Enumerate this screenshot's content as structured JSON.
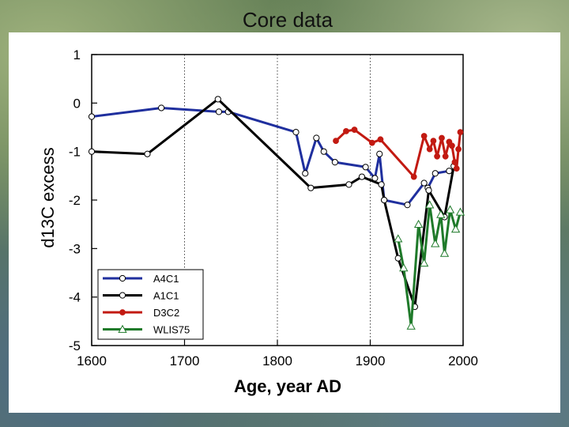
{
  "slide": {
    "title": "Core data"
  },
  "chart_data": {
    "type": "line",
    "title": "",
    "xlabel": "Age, year AD",
    "ylabel": "d13C excess",
    "xlim": [
      1600,
      2000
    ],
    "ylim": [
      -5,
      1
    ],
    "xticks": [
      1600,
      1700,
      1800,
      1900,
      2000
    ],
    "yticks": [
      1,
      0,
      -1,
      -2,
      -3,
      -4,
      -5
    ],
    "grid": "vertical dotted at x ticks",
    "legend_position": "bottom-left",
    "series": [
      {
        "name": "A4C1",
        "color": "#1f2f9e",
        "marker": "circle-open",
        "x": [
          1600,
          1675,
          1737,
          1747,
          1820,
          1830,
          1842,
          1850,
          1862,
          1895,
          1905,
          1910,
          1915,
          1940,
          1958,
          1962,
          1970,
          1985
        ],
        "y": [
          -0.28,
          -0.1,
          -0.18,
          -0.18,
          -0.6,
          -1.45,
          -0.72,
          -1.0,
          -1.22,
          -1.32,
          -1.55,
          -1.05,
          -2.0,
          -2.1,
          -1.65,
          -1.75,
          -1.45,
          -1.4
        ]
      },
      {
        "name": "A1C1",
        "color": "#000000",
        "marker": "circle-open",
        "x": [
          1600,
          1660,
          1736,
          1836,
          1877,
          1891,
          1912,
          1915,
          1930,
          1948,
          1963,
          1980,
          1990
        ],
        "y": [
          -1.0,
          -1.05,
          0.08,
          -1.75,
          -1.68,
          -1.52,
          -1.68,
          -2.0,
          -3.2,
          -4.2,
          -1.8,
          -2.35,
          -1.3
        ]
      },
      {
        "name": "D3C2",
        "color": "#c21a12",
        "marker": "circle-filled",
        "x": [
          1863,
          1874,
          1883,
          1902,
          1911,
          1947,
          1958,
          1964,
          1968,
          1972,
          1977,
          1981,
          1985,
          1988,
          1991,
          1993,
          1995,
          1997
        ],
        "y": [
          -0.78,
          -0.58,
          -0.55,
          -0.82,
          -0.75,
          -1.52,
          -0.68,
          -0.95,
          -0.78,
          -1.1,
          -0.72,
          -1.1,
          -0.8,
          -0.88,
          -1.22,
          -1.35,
          -0.95,
          -0.6
        ]
      },
      {
        "name": "WLIS75",
        "color": "#1f7a2a",
        "marker": "triangle-open",
        "x": [
          1930,
          1936,
          1944,
          1952,
          1958,
          1964,
          1970,
          1976,
          1980,
          1986,
          1992,
          1997
        ],
        "y": [
          -2.8,
          -3.4,
          -4.6,
          -2.5,
          -3.3,
          -2.1,
          -2.9,
          -2.3,
          -3.1,
          -2.2,
          -2.6,
          -2.25
        ]
      }
    ]
  }
}
